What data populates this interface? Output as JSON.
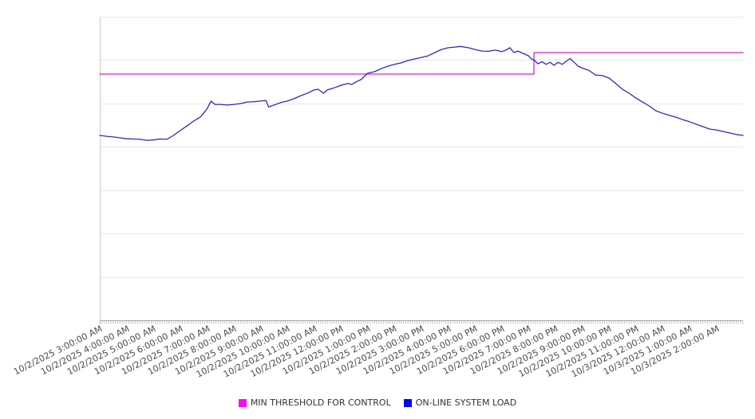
{
  "page": {
    "background": "#ffffff",
    "title": ""
  },
  "chart_data": {
    "type": "line",
    "title": "",
    "xlabel": "",
    "ylabel": "",
    "x_axis": {
      "hours_span": 24,
      "tick_labels": [
        "10/2/2025 3:00:00 AM",
        "10/2/2025 4:00:00 AM",
        "10/2/2025 5:00:00 AM",
        "10/2/2025 6:00:00 AM",
        "10/2/2025 7:00:00 AM",
        "10/2/2025 8:00:00 AM",
        "10/2/2025 9:00:00 AM",
        "10/2/2025 10:00:00 AM",
        "10/2/2025 11:00:00 AM",
        "10/2/2025 12:00:00 PM",
        "10/2/2025 1:00:00 PM",
        "10/2/2025 2:00:00 PM",
        "10/2/2025 3:00:00 PM",
        "10/2/2025 4:00:00 PM",
        "10/2/2025 5:00:00 PM",
        "10/2/2025 6:00:00 PM",
        "10/2/2025 7:00:00 PM",
        "10/2/2025 8:00:00 PM",
        "10/2/2025 9:00:00 PM",
        "10/2/2025 10:00:00 PM",
        "10/2/2025 11:00:00 PM",
        "10/3/2025 12:00:00 AM",
        "10/3/2025 1:00:00 AM",
        "10/3/2025 2:00:00 AM"
      ],
      "minor_ticks_per_hour": 12
    },
    "y_axis": {
      "tick_labels_visible": false,
      "ylim": [
        0,
        100
      ],
      "note_values_are_percent_of_plot_height": true,
      "gridline_divisions": 7
    },
    "grid": true,
    "legend_position": "bottom",
    "legend": {
      "entries": [
        {
          "label": "MIN THRESHOLD FOR CONTROL",
          "color": "#fb0cf0"
        },
        {
          "label": "ON-LINE SYSTEM LOAD",
          "color": "#0009e8"
        }
      ]
    },
    "series": [
      {
        "name": "MIN THRESHOLD FOR CONTROL",
        "color": "#dc1ed0",
        "style": "step",
        "points": [
          [
            0,
            81.1
          ],
          [
            16.2,
            81.1
          ],
          [
            16.2,
            88.2
          ],
          [
            24,
            88.2
          ]
        ]
      },
      {
        "name": "ON-LINE SYSTEM LOAD",
        "color": "#2b2bc0",
        "style": "line",
        "points": [
          [
            0,
            60.9
          ],
          [
            0.25,
            60.6
          ],
          [
            0.5,
            60.4
          ],
          [
            0.75,
            60.1
          ],
          [
            1,
            59.8
          ],
          [
            1.25,
            59.7
          ],
          [
            1.5,
            59.6
          ],
          [
            1.75,
            59.3
          ],
          [
            2,
            59.4
          ],
          [
            2.25,
            59.7
          ],
          [
            2.5,
            59.6
          ],
          [
            2.75,
            60.9
          ],
          [
            3,
            62.5
          ],
          [
            3.25,
            64
          ],
          [
            3.5,
            65.6
          ],
          [
            3.75,
            66.9
          ],
          [
            4,
            69.6
          ],
          [
            4.15,
            72.2
          ],
          [
            4.3,
            71.1
          ],
          [
            4.5,
            71.1
          ],
          [
            4.75,
            70.9
          ],
          [
            5,
            71.1
          ],
          [
            5.25,
            71.4
          ],
          [
            5.5,
            71.9
          ],
          [
            5.75,
            72
          ],
          [
            6,
            72.2
          ],
          [
            6.2,
            72.4
          ],
          [
            6.3,
            70.3
          ],
          [
            6.5,
            70.9
          ],
          [
            6.75,
            71.7
          ],
          [
            7,
            72.2
          ],
          [
            7.25,
            73
          ],
          [
            7.5,
            74
          ],
          [
            7.75,
            74.8
          ],
          [
            8,
            75.9
          ],
          [
            8.15,
            76.1
          ],
          [
            8.35,
            74.8
          ],
          [
            8.5,
            75.9
          ],
          [
            8.75,
            76.6
          ],
          [
            9,
            77.4
          ],
          [
            9.25,
            78
          ],
          [
            9.4,
            77.7
          ],
          [
            9.6,
            78.7
          ],
          [
            9.75,
            79.3
          ],
          [
            10,
            81.4
          ],
          [
            10.25,
            81.9
          ],
          [
            10.5,
            82.9
          ],
          [
            10.75,
            83.7
          ],
          [
            11,
            84.3
          ],
          [
            11.25,
            84.8
          ],
          [
            11.5,
            85.6
          ],
          [
            11.75,
            86.1
          ],
          [
            12,
            86.6
          ],
          [
            12.25,
            87.1
          ],
          [
            12.5,
            88.2
          ],
          [
            12.75,
            89.2
          ],
          [
            13,
            89.8
          ],
          [
            13.25,
            90
          ],
          [
            13.45,
            90.2
          ],
          [
            13.75,
            89.8
          ],
          [
            14,
            89.2
          ],
          [
            14.25,
            88.7
          ],
          [
            14.5,
            88.6
          ],
          [
            14.75,
            89
          ],
          [
            15,
            88.5
          ],
          [
            15.15,
            89
          ],
          [
            15.3,
            89.8
          ],
          [
            15.45,
            88.2
          ],
          [
            15.6,
            88.7
          ],
          [
            15.8,
            87.9
          ],
          [
            16,
            87.1
          ],
          [
            16.1,
            86.1
          ],
          [
            16.2,
            85.8
          ],
          [
            16.35,
            84.5
          ],
          [
            16.5,
            85.2
          ],
          [
            16.65,
            84.3
          ],
          [
            16.8,
            85
          ],
          [
            16.95,
            84
          ],
          [
            17.1,
            85
          ],
          [
            17.25,
            84.3
          ],
          [
            17.4,
            85.3
          ],
          [
            17.55,
            86.2
          ],
          [
            17.7,
            85
          ],
          [
            17.85,
            83.7
          ],
          [
            18,
            83.1
          ],
          [
            18.25,
            82.3
          ],
          [
            18.5,
            80.8
          ],
          [
            18.75,
            80.6
          ],
          [
            19,
            79.8
          ],
          [
            19.25,
            78
          ],
          [
            19.5,
            76.1
          ],
          [
            19.75,
            74.8
          ],
          [
            20,
            73.2
          ],
          [
            20.25,
            71.9
          ],
          [
            20.5,
            70.6
          ],
          [
            20.75,
            69
          ],
          [
            21,
            68.2
          ],
          [
            21.25,
            67.5
          ],
          [
            21.5,
            66.9
          ],
          [
            21.75,
            66.1
          ],
          [
            22,
            65.4
          ],
          [
            22.25,
            64.6
          ],
          [
            22.5,
            63.8
          ],
          [
            22.75,
            63
          ],
          [
            23,
            62.7
          ],
          [
            23.25,
            62.2
          ],
          [
            23.5,
            61.7
          ],
          [
            23.75,
            61.2
          ],
          [
            24,
            60.9
          ]
        ]
      }
    ],
    "colors": {
      "gridline": "#e8e8e8",
      "axis_line": "#a8a8a8",
      "left_axis_line": "#cccccc",
      "minor_tick": "#b5b5b5",
      "x_label_text": "#4a4a4a",
      "legend_text": "#333333"
    }
  }
}
